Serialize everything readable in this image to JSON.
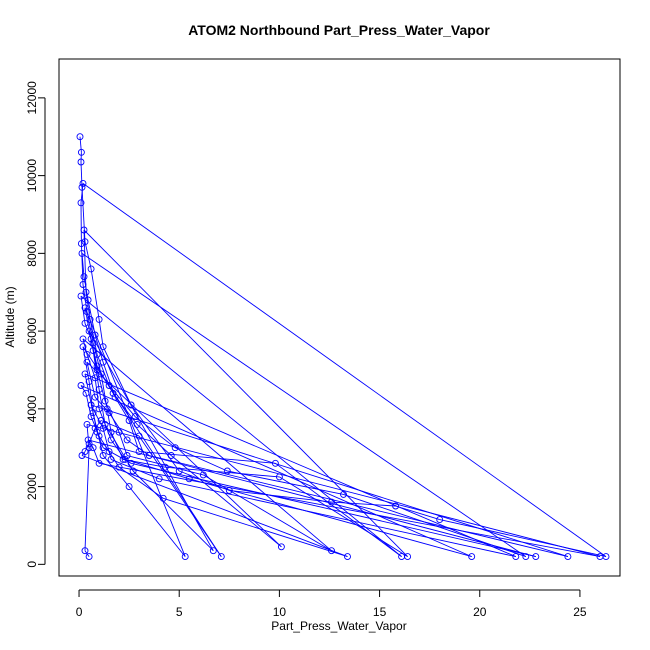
{
  "chart_data": {
    "type": "line",
    "title": "ATOM2 Northbound Part_Press_Water_Vapor",
    "xlabel": "Part_Press_Water_Vapor",
    "ylabel": "Altitude (m)",
    "xlim": [
      -1,
      27
    ],
    "ylim": [
      -300,
      13000
    ],
    "xticks": [
      0,
      5,
      10,
      15,
      20,
      25
    ],
    "yticks": [
      0,
      2000,
      4000,
      6000,
      8000,
      10000,
      12000
    ],
    "series_color": "#0000ff",
    "marker": "open-circle",
    "series": [
      {
        "points": [
          [
            0.05,
            11000
          ],
          [
            0.12,
            10600
          ],
          [
            0.1,
            10350
          ],
          [
            0.15,
            9700
          ],
          [
            0.3,
            8300
          ],
          [
            0.6,
            7600
          ],
          [
            1.0,
            6300
          ],
          [
            1.2,
            5600
          ],
          [
            2.6,
            4100
          ],
          [
            5.0,
            2400
          ],
          [
            7.5,
            1900
          ],
          [
            12.6,
            1600
          ],
          [
            15.8,
            1500
          ],
          [
            18.0,
            1150
          ],
          [
            26.3,
            200
          ],
          [
            0.2,
            9800
          ],
          [
            0.1,
            9300
          ],
          [
            0.12,
            8250
          ],
          [
            0.2,
            7200
          ],
          [
            0.4,
            6500
          ],
          [
            0.7,
            5700
          ],
          [
            1.1,
            4900
          ],
          [
            1.4,
            4000
          ],
          [
            1.6,
            3400
          ],
          [
            2.2,
            2700
          ],
          [
            4.3,
            2500
          ],
          [
            10.0,
            2250
          ],
          [
            16.4,
            200
          ],
          [
            0.25,
            8600
          ],
          [
            0.35,
            7000
          ],
          [
            0.55,
            6300
          ],
          [
            0.9,
            5400
          ],
          [
            1.5,
            4600
          ],
          [
            2.8,
            3800
          ],
          [
            4.8,
            3000
          ],
          [
            7.4,
            2400
          ],
          [
            13.2,
            1800
          ],
          [
            22.3,
            200
          ],
          [
            0.15,
            8000
          ],
          [
            0.25,
            7400
          ],
          [
            0.45,
            6800
          ],
          [
            0.8,
            5900
          ],
          [
            1.2,
            5200
          ],
          [
            1.8,
            4300
          ],
          [
            2.5,
            3700
          ],
          [
            3.0,
            2900
          ],
          [
            9.8,
            2600
          ],
          [
            16.1,
            200
          ],
          [
            0.1,
            6900
          ],
          [
            0.3,
            6200
          ],
          [
            0.6,
            5800
          ],
          [
            0.9,
            5000
          ],
          [
            1.3,
            4200
          ],
          [
            2.0,
            3400
          ],
          [
            2.4,
            2800
          ],
          [
            6.2,
            2300
          ],
          [
            12.6,
            350
          ],
          [
            0.2,
            5800
          ],
          [
            0.4,
            5400
          ],
          [
            0.8,
            4800
          ],
          [
            1.0,
            4000
          ],
          [
            1.6,
            3200
          ],
          [
            2.3,
            2700
          ],
          [
            5.5,
            2200
          ],
          [
            19.6,
            200
          ],
          [
            0.1,
            4600
          ],
          [
            0.35,
            4400
          ],
          [
            0.6,
            3800
          ],
          [
            1.0,
            3300
          ],
          [
            1.5,
            2900
          ],
          [
            2.0,
            2500
          ],
          [
            4.2,
            1700
          ],
          [
            13.4,
            200
          ],
          [
            0.15,
            2800
          ],
          [
            0.3,
            2900
          ],
          [
            0.5,
            3100
          ],
          [
            0.8,
            3500
          ],
          [
            1.1,
            3700
          ],
          [
            3.0,
            3300
          ],
          [
            7.1,
            200
          ],
          [
            0.2,
            5600
          ],
          [
            0.5,
            4700
          ],
          [
            0.7,
            3900
          ],
          [
            1.2,
            2800
          ],
          [
            2.5,
            2000
          ],
          [
            5.3,
            200
          ],
          [
            0.3,
            6600
          ],
          [
            0.7,
            5500
          ],
          [
            1.0,
            4500
          ],
          [
            1.3,
            3600
          ],
          [
            2.7,
            2400
          ],
          [
            6.7,
            350
          ],
          [
            0.5,
            6000
          ],
          [
            0.9,
            5100
          ],
          [
            1.7,
            4400
          ],
          [
            2.9,
            3600
          ],
          [
            4.6,
            2800
          ],
          [
            10.1,
            450
          ],
          [
            0.4,
            5200
          ],
          [
            0.8,
            4300
          ],
          [
            1.5,
            3900
          ],
          [
            2.4,
            3200
          ],
          [
            3.5,
            2800
          ],
          [
            24.4,
            200
          ],
          [
            0.6,
            4100
          ],
          [
            1.2,
            3500
          ],
          [
            1.6,
            2700
          ],
          [
            4.0,
            2200
          ],
          [
            21.8,
            200
          ],
          [
            0.3,
            4900
          ],
          [
            0.9,
            3400
          ],
          [
            1.2,
            3000
          ],
          [
            2.6,
            2600
          ],
          [
            22.8,
            200
          ],
          [
            0.45,
            3200
          ],
          [
            0.7,
            3000
          ],
          [
            1.0,
            2600
          ],
          [
            26.0,
            200
          ],
          [
            0.4,
            3600
          ],
          [
            0.5,
            3000
          ],
          [
            0.3,
            350
          ],
          [
            0.5,
            200
          ]
        ]
      }
    ]
  }
}
